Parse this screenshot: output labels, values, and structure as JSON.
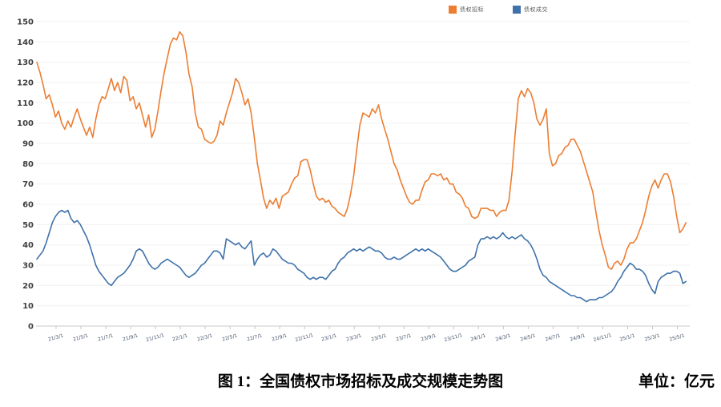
{
  "legend": {
    "items": [
      {
        "id": "bidding",
        "label": "债权招标",
        "color": "#ED7D31"
      },
      {
        "id": "deal",
        "label": "债权成交",
        "color": "#3F72A9"
      }
    ]
  },
  "caption": {
    "title": "图 1：全国债权市场招标及成交规模走势图",
    "unit": "单位：亿元"
  },
  "chart_data": {
    "type": "line",
    "title": "全国债权市场招标及成交规模走势图",
    "xlabel": "",
    "ylabel": "",
    "grid": "horizontal",
    "legend_position": "top",
    "y_axis": {
      "range": [
        0,
        150
      ],
      "ticks": [
        0,
        10,
        20,
        30,
        40,
        50,
        60,
        70,
        80,
        90,
        100,
        110,
        120,
        130,
        140,
        150
      ]
    },
    "x_axis": {
      "unit": "date (yy/m/d)",
      "range_months": [
        0,
        53
      ],
      "tick_positions_month": [
        2,
        4,
        6,
        8,
        10,
        12,
        14,
        16,
        18,
        20,
        22,
        24,
        26,
        28,
        30,
        32,
        34,
        36,
        38,
        40,
        42,
        44,
        46,
        48,
        50,
        52
      ],
      "tick_labels": [
        "21/3/1",
        "21/5/1",
        "21/7/1",
        "21/9/1",
        "21/11/1",
        "22/1/1",
        "22/3/1",
        "22/5/1",
        "22/7/1",
        "22/9/1",
        "22/11/1",
        "23/1/1",
        "23/3/1",
        "23/5/1",
        "23/7/1",
        "23/9/1",
        "23/11/1",
        "24/1/1",
        "24/3/1",
        "24/5/1",
        "24/7/1",
        "24/9/1",
        "24/11/1",
        "25/1/1",
        "25/3/1",
        "25/5/1"
      ]
    },
    "series": [
      {
        "id": "bidding",
        "name": "债权招标",
        "color": "#ED7D31",
        "x_start_month": 0.45,
        "x_step_month": 0.25,
        "values": [
          130,
          125,
          119,
          112,
          114,
          109,
          103,
          106,
          100,
          97,
          101,
          98,
          103,
          107,
          102,
          98,
          94,
          98,
          93,
          102,
          109,
          113,
          112,
          117,
          122,
          116,
          120,
          115,
          123,
          121,
          111,
          113,
          107,
          110,
          104,
          98,
          104,
          93,
          97,
          106,
          116,
          125,
          132,
          139,
          142,
          141,
          145,
          143,
          135,
          124,
          118,
          105,
          98,
          97,
          92,
          91,
          90,
          91,
          94,
          101,
          99,
          105,
          110,
          115,
          122,
          120,
          115,
          109,
          112,
          105,
          93,
          80,
          72,
          63,
          58,
          62,
          60,
          63,
          58,
          64,
          65,
          66,
          70,
          73,
          74,
          81,
          82,
          82,
          77,
          70,
          64,
          62,
          63,
          61,
          62,
          59,
          58,
          56,
          55,
          54,
          58,
          65,
          74,
          87,
          99,
          105,
          104,
          103,
          107,
          105,
          109,
          102,
          97,
          92,
          86,
          80,
          77,
          72,
          68,
          64,
          61,
          60,
          62,
          62,
          67,
          71,
          72,
          75,
          75,
          74,
          75,
          72,
          73,
          70,
          70,
          66,
          65,
          63,
          59,
          58,
          54,
          53,
          54,
          58,
          58,
          58,
          57,
          57,
          54,
          56,
          57,
          57,
          62,
          76,
          95,
          112,
          116,
          113,
          117,
          115,
          110,
          102,
          99,
          102,
          107,
          85,
          79,
          80,
          84,
          85,
          88,
          89,
          92,
          92,
          89,
          86,
          81,
          76,
          71,
          66,
          56,
          47,
          40,
          35,
          29,
          28,
          31,
          32,
          30,
          33,
          38,
          41,
          41,
          43,
          47,
          51,
          57,
          64,
          69,
          72,
          68,
          72,
          75,
          75,
          71,
          64,
          54,
          46,
          48,
          51
        ]
      },
      {
        "id": "deal",
        "name": "债权成交",
        "color": "#3F72A9",
        "x_start_month": 0.45,
        "x_step_month": 0.25,
        "values": [
          33,
          35,
          37,
          41,
          46,
          51,
          54,
          56,
          57,
          56,
          57,
          53,
          51,
          52,
          50,
          47,
          44,
          40,
          35,
          30,
          27,
          25,
          23,
          21,
          20,
          22,
          24,
          25,
          26,
          28,
          30,
          33,
          37,
          38,
          37,
          34,
          31,
          29,
          28,
          29,
          31,
          32,
          33,
          32,
          31,
          30,
          29,
          27,
          25,
          24,
          25,
          26,
          28,
          30,
          31,
          33,
          35,
          37,
          37,
          36,
          33,
          43,
          42,
          41,
          40,
          41,
          39,
          38,
          40,
          42,
          30,
          33,
          35,
          36,
          34,
          35,
          38,
          37,
          35,
          33,
          32,
          31,
          31,
          30,
          28,
          27,
          26,
          24,
          23,
          24,
          23,
          24,
          24,
          23,
          25,
          27,
          28,
          31,
          33,
          34,
          36,
          37,
          38,
          37,
          38,
          37,
          38,
          39,
          38,
          37,
          37,
          36,
          34,
          33,
          33,
          34,
          33,
          33,
          34,
          35,
          36,
          37,
          38,
          37,
          38,
          37,
          38,
          37,
          36,
          35,
          34,
          32,
          30,
          28,
          27,
          27,
          28,
          29,
          30,
          32,
          33,
          34,
          40,
          43,
          43,
          44,
          43,
          44,
          43,
          44,
          46,
          44,
          43,
          44,
          43,
          44,
          45,
          43,
          42,
          40,
          37,
          33,
          28,
          25,
          24,
          22,
          21,
          20,
          19,
          18,
          17,
          16,
          15,
          15,
          14,
          14,
          13,
          12,
          13,
          13,
          13,
          14,
          14,
          15,
          16,
          17,
          19,
          22,
          24,
          27,
          29,
          31,
          30,
          28,
          28,
          27,
          25,
          21,
          18,
          16,
          22,
          24,
          25,
          26,
          26,
          27,
          27,
          26,
          21,
          22
        ]
      }
    ]
  }
}
